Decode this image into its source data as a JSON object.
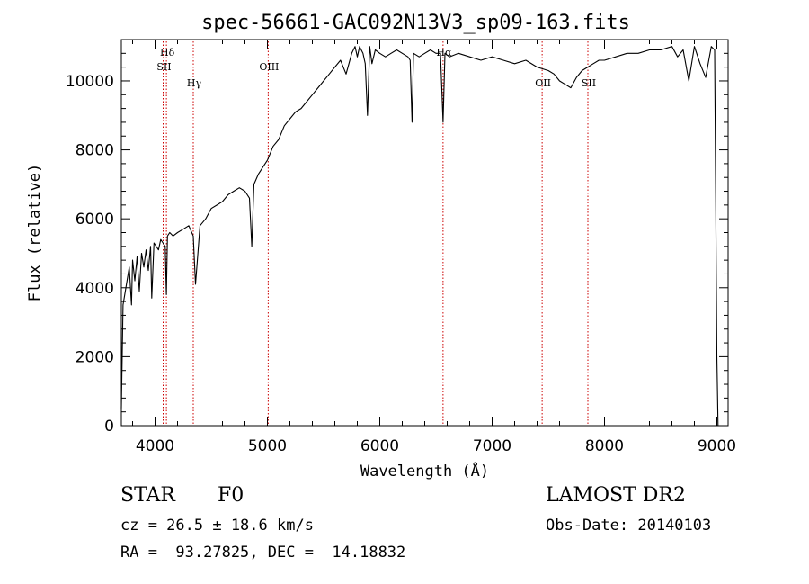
{
  "chart_data": {
    "type": "line",
    "title": "spec-56661-GAC092N13V3_sp09-163.fits",
    "xlabel": "Wavelength (Å)",
    "ylabel": "Flux (relative)",
    "xlim": [
      3700,
      9100
    ],
    "ylim": [
      0,
      11200
    ],
    "x_ticks": [
      4000,
      5000,
      6000,
      7000,
      8000,
      9000
    ],
    "y_ticks": [
      0,
      2000,
      4000,
      6000,
      8000,
      10000
    ],
    "series": [
      {
        "x": [
          3700,
          3715,
          3730,
          3750,
          3770,
          3790,
          3800,
          3820,
          3840,
          3860,
          3880,
          3900,
          3920,
          3940,
          3960,
          3970,
          3990,
          4010,
          4030,
          4050,
          4070,
          4090,
          4101,
          4110,
          4130,
          4160,
          4200,
          4250,
          4300,
          4340,
          4360,
          4400,
          4450,
          4500,
          4550,
          4600,
          4650,
          4700,
          4750,
          4800,
          4840,
          4861,
          4880,
          4920,
          4960,
          5000,
          5050,
          5100,
          5150,
          5200,
          5250,
          5300,
          5350,
          5400,
          5450,
          5500,
          5550,
          5600,
          5650,
          5700,
          5750,
          5780,
          5800,
          5820,
          5850,
          5870,
          5890,
          5910,
          5930,
          5960,
          6000,
          6050,
          6100,
          6150,
          6200,
          6250,
          6270,
          6287,
          6300,
          6350,
          6400,
          6450,
          6500,
          6540,
          6563,
          6580,
          6620,
          6700,
          6800,
          6900,
          7000,
          7100,
          7200,
          7300,
          7400,
          7500,
          7550,
          7600,
          7650,
          7700,
          7750,
          7800,
          7850,
          7900,
          7950,
          8000,
          8100,
          8200,
          8300,
          8400,
          8500,
          8600,
          8650,
          8700,
          8750,
          8800,
          8850,
          8900,
          8950,
          8980,
          9000,
          9010
        ],
        "y": [
          500,
          3500,
          3800,
          4200,
          4600,
          3500,
          4800,
          4200,
          4900,
          3900,
          5000,
          4600,
          5100,
          4500,
          5200,
          3700,
          5300,
          5200,
          5100,
          5400,
          5300,
          5200,
          3800,
          5500,
          5600,
          5500,
          5600,
          5700,
          5800,
          5500,
          4100,
          5800,
          6000,
          6300,
          6400,
          6500,
          6700,
          6800,
          6900,
          6800,
          6600,
          5200,
          7000,
          7300,
          7500,
          7700,
          8100,
          8300,
          8700,
          8900,
          9100,
          9200,
          9400,
          9600,
          9800,
          10000,
          10200,
          10400,
          10600,
          10200,
          10800,
          11000,
          10700,
          11000,
          10800,
          10500,
          9000,
          11000,
          10500,
          10900,
          10800,
          10700,
          10800,
          10900,
          10800,
          10700,
          10600,
          8800,
          10800,
          10700,
          10800,
          10900,
          10800,
          10800,
          8800,
          10800,
          10700,
          10800,
          10700,
          10600,
          10700,
          10600,
          10500,
          10600,
          10400,
          10300,
          10200,
          10000,
          9900,
          9800,
          10100,
          10300,
          10400,
          10500,
          10600,
          10600,
          10700,
          10800,
          10800,
          10900,
          10900,
          11000,
          10700,
          10900,
          10000,
          11000,
          10500,
          10100,
          11000,
          10900,
          2000,
          0
        ]
      }
    ],
    "lines": [
      {
        "label": "Hδ",
        "x": 4101
      },
      {
        "label": "SII",
        "x": 4072
      },
      {
        "label": "Hγ",
        "x": 4340
      },
      {
        "label": "OIII",
        "x": 5007
      },
      {
        "label": "Hα",
        "x": 6563
      },
      {
        "label": "OII",
        "x": 7445
      },
      {
        "label": "SII",
        "x": 7852
      }
    ],
    "grid": false,
    "colors": {
      "spectrum": "#000000",
      "marker_lines": "#cc0000",
      "axes": "#000000"
    }
  },
  "info": {
    "object_class": "STAR",
    "subclass": "F0",
    "survey": "LAMOST DR2",
    "cz": "cz = 26.5 ± 18.6 km/s",
    "obs_date": "Obs-Date: 20140103",
    "coords": "RA =  93.27825, DEC =  14.18832"
  }
}
